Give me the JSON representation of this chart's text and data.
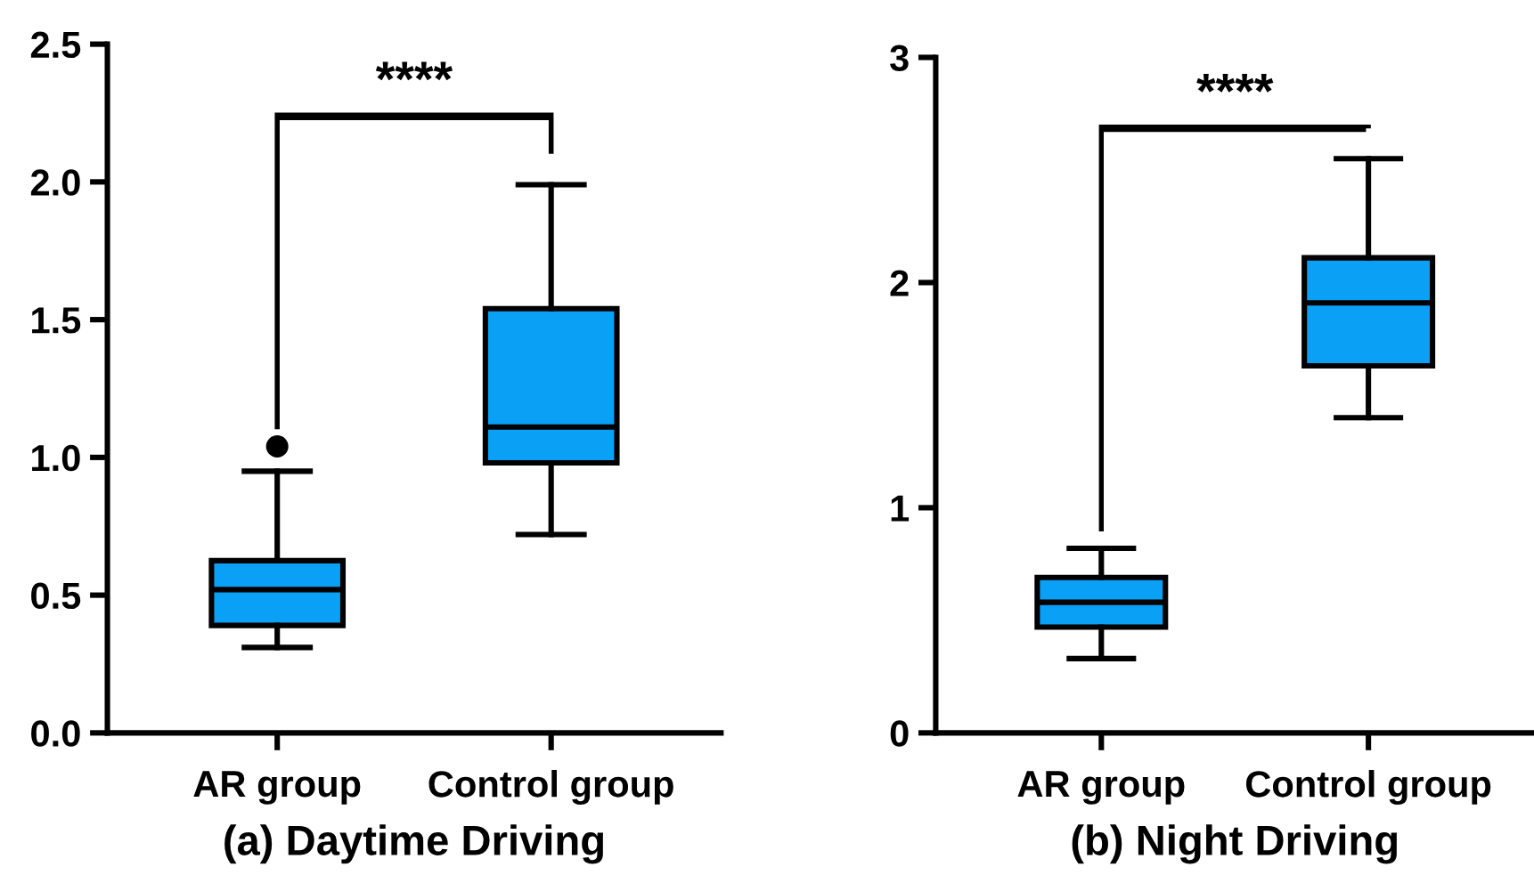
{
  "chart_data": [
    {
      "type": "box",
      "title": "(a) Daytime Driving",
      "categories": [
        "AR group",
        "Control group"
      ],
      "color": "#0aa0f5",
      "boxes": [
        {
          "low": 0.31,
          "q1": 0.39,
          "median": 0.52,
          "q3": 0.625,
          "high": 0.95,
          "outliers": [
            1.04
          ]
        },
        {
          "low": 0.72,
          "q1": 0.98,
          "median": 1.11,
          "q3": 1.54,
          "high": 1.99
        }
      ],
      "ylim": [
        0,
        2.5
      ],
      "yticks": [
        {
          "value": 0,
          "label": "0.0"
        },
        {
          "value": 0.5,
          "label": "0.5"
        },
        {
          "value": 1,
          "label": "1.0"
        },
        {
          "value": 1.5,
          "label": "1.5"
        },
        {
          "value": 2,
          "label": "2.0"
        },
        {
          "value": 2.5,
          "label": "2.5"
        }
      ],
      "grid": false,
      "annotations": [
        "****"
      ]
    },
    {
      "type": "box",
      "title": "(b) Night Driving",
      "categories": [
        "AR group",
        "Control group"
      ],
      "color": "#0aa0f5",
      "boxes": [
        {
          "low": 0.33,
          "q1": 0.47,
          "median": 0.58,
          "q3": 0.69,
          "high": 0.82
        },
        {
          "low": 1.4,
          "q1": 1.63,
          "median": 1.91,
          "q3": 2.11,
          "high": 2.55
        }
      ],
      "ylim": [
        0,
        3
      ],
      "yticks": [
        0,
        1,
        2,
        3
      ],
      "grid": false,
      "annotations": [
        "****"
      ]
    }
  ]
}
